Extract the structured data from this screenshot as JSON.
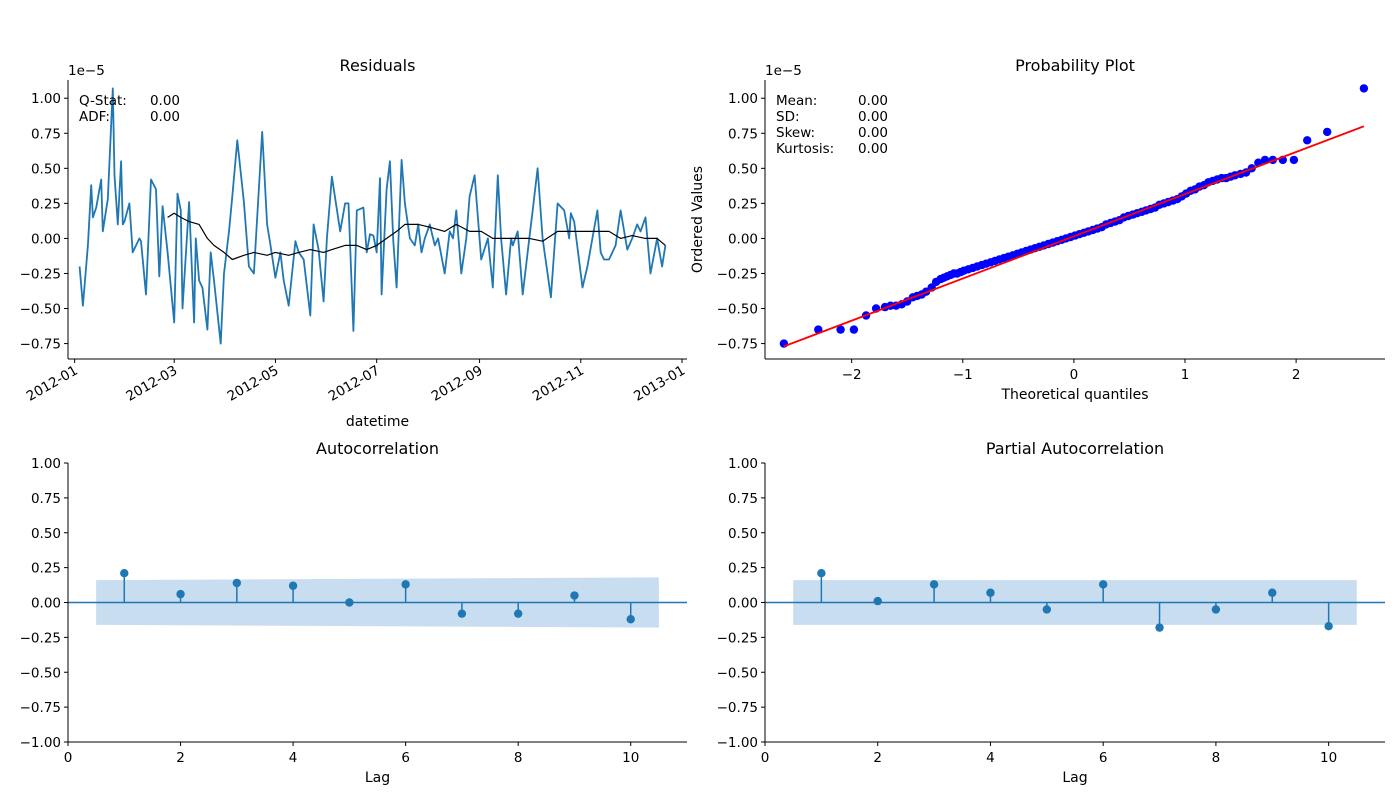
{
  "chart_data": [
    {
      "type": "line",
      "title": "Residuals",
      "xlabel": "datetime",
      "ylabel": "",
      "scale_label": "1e−5",
      "x_ticks": [
        "2012-01",
        "2012-03",
        "2012-05",
        "2012-07",
        "2012-09",
        "2012-11",
        "2013-01"
      ],
      "xlim": [
        "2011-12-28",
        "2013-01-04"
      ],
      "y_ticks": [
        "−0.75",
        "−0.50",
        "−0.25",
        "0.00",
        "0.25",
        "0.50",
        "0.75",
        "1.00"
      ],
      "ylim": [
        -0.86,
        1.13
      ],
      "annotations": [
        {
          "label": "Q-Stat:",
          "value": "0.00"
        },
        {
          "label": "ADF:",
          "value": "0.00"
        }
      ],
      "series": [
        {
          "color": "#1f77b4",
          "x": [
            "2012-01-04",
            "2012-01-06",
            "2012-01-09",
            "2012-01-11",
            "2012-01-12",
            "2012-01-14",
            "2012-01-17",
            "2012-01-18",
            "2012-01-21",
            "2012-01-24",
            "2012-01-25",
            "2012-01-27",
            "2012-01-29",
            "2012-01-30",
            "2012-01-31",
            "2012-02-03",
            "2012-02-05",
            "2012-02-09",
            "2012-02-10",
            "2012-02-13",
            "2012-02-16",
            "2012-02-19",
            "2012-02-21",
            "2012-02-23",
            "2012-02-26",
            "2012-03-01",
            "2012-03-03",
            "2012-03-05",
            "2012-03-06",
            "2012-03-10",
            "2012-03-13",
            "2012-03-14",
            "2012-03-16",
            "2012-03-18",
            "2012-03-21",
            "2012-03-23",
            "2012-03-25",
            "2012-03-29",
            "2012-03-31",
            "2012-04-03",
            "2012-04-05",
            "2012-04-08",
            "2012-04-12",
            "2012-04-15",
            "2012-04-18",
            "2012-04-23",
            "2012-04-26",
            "2012-04-28",
            "2012-05-01",
            "2012-05-04",
            "2012-05-06",
            "2012-05-09",
            "2012-05-13",
            "2012-05-15",
            "2012-05-18",
            "2012-05-22",
            "2012-05-24",
            "2012-05-27",
            "2012-05-30",
            "2012-06-01",
            "2012-06-04",
            "2012-06-09",
            "2012-06-12",
            "2012-06-14",
            "2012-06-17",
            "2012-06-19",
            "2012-06-23",
            "2012-06-25",
            "2012-06-27",
            "2012-06-29",
            "2012-07-01",
            "2012-07-03",
            "2012-07-04",
            "2012-07-07",
            "2012-07-09",
            "2012-07-11",
            "2012-07-13",
            "2012-07-16",
            "2012-07-18",
            "2012-07-21",
            "2012-07-24",
            "2012-07-26",
            "2012-07-28",
            "2012-07-30",
            "2012-08-02",
            "2012-08-05",
            "2012-08-07",
            "2012-08-11",
            "2012-08-14",
            "2012-08-16",
            "2012-08-18",
            "2012-08-21",
            "2012-08-24",
            "2012-08-26",
            "2012-08-29",
            "2012-09-02",
            "2012-09-06",
            "2012-09-09",
            "2012-09-12",
            "2012-09-14",
            "2012-09-17",
            "2012-09-20",
            "2012-09-21",
            "2012-09-24",
            "2012-09-27",
            "2012-10-01",
            "2012-10-03",
            "2012-10-06",
            "2012-10-09",
            "2012-10-14",
            "2012-10-18",
            "2012-10-22",
            "2012-10-25",
            "2012-10-26",
            "2012-10-28",
            "2012-11-02",
            "2012-11-05",
            "2012-11-08",
            "2012-11-11",
            "2012-11-13",
            "2012-11-15",
            "2012-11-18",
            "2012-11-22",
            "2012-11-25",
            "2012-11-29",
            "2012-12-02",
            "2012-12-05",
            "2012-12-07",
            "2012-12-10",
            "2012-12-13",
            "2012-12-17",
            "2012-12-20",
            "2012-12-22"
          ],
          "y": [
            -0.2,
            -0.48,
            -0.05,
            0.38,
            0.15,
            0.22,
            0.42,
            0.05,
            0.28,
            1.07,
            0.45,
            0.1,
            0.55,
            0.1,
            0.12,
            0.25,
            -0.1,
            0.0,
            -0.02,
            -0.4,
            0.42,
            0.35,
            -0.27,
            0.23,
            -0.1,
            -0.6,
            0.32,
            0.2,
            -0.5,
            0.26,
            -0.6,
            0.0,
            -0.3,
            -0.35,
            -0.65,
            -0.1,
            -0.3,
            -0.75,
            -0.25,
            0.05,
            0.3,
            0.7,
            0.26,
            -0.2,
            -0.25,
            0.76,
            0.1,
            -0.05,
            -0.28,
            -0.1,
            -0.3,
            -0.48,
            -0.02,
            -0.1,
            -0.15,
            -0.55,
            0.1,
            -0.08,
            -0.45,
            0.0,
            0.44,
            0.05,
            0.25,
            0.25,
            -0.66,
            0.2,
            0.22,
            -0.1,
            0.03,
            0.02,
            -0.1,
            0.43,
            -0.4,
            0.35,
            0.55,
            -0.02,
            -0.35,
            0.56,
            0.25,
            0.0,
            -0.05,
            0.1,
            -0.1,
            0.0,
            0.1,
            -0.05,
            0.0,
            -0.25,
            0.05,
            0.0,
            0.2,
            -0.25,
            0.0,
            0.3,
            0.45,
            -0.15,
            0.0,
            -0.35,
            0.45,
            0.0,
            -0.4,
            0.0,
            -0.05,
            0.05,
            -0.4,
            0.0,
            0.2,
            0.5,
            0.0,
            -0.42,
            0.25,
            0.2,
            0.0,
            0.18,
            0.12,
            -0.35,
            -0.2,
            0.0,
            0.2,
            -0.1,
            -0.15,
            -0.15,
            -0.05,
            0.2,
            -0.08,
            0.0,
            0.1,
            0.05,
            0.15,
            -0.25,
            0.0,
            -0.2,
            -0.05
          ]
        },
        {
          "color": "#000000",
          "x": [
            "2012-02-26",
            "2012-03-01",
            "2012-03-05",
            "2012-03-10",
            "2012-03-16",
            "2012-03-21",
            "2012-03-25",
            "2012-03-31",
            "2012-04-05",
            "2012-04-12",
            "2012-04-18",
            "2012-04-26",
            "2012-05-01",
            "2012-05-09",
            "2012-05-15",
            "2012-05-22",
            "2012-05-30",
            "2012-06-04",
            "2012-06-12",
            "2012-06-19",
            "2012-06-25",
            "2012-07-01",
            "2012-07-07",
            "2012-07-13",
            "2012-07-18",
            "2012-07-26",
            "2012-08-02",
            "2012-08-11",
            "2012-08-18",
            "2012-08-26",
            "2012-09-02",
            "2012-09-09",
            "2012-09-17",
            "2012-09-24",
            "2012-10-01",
            "2012-10-09",
            "2012-10-18",
            "2012-10-26",
            "2012-11-02",
            "2012-11-11",
            "2012-11-18",
            "2012-11-25",
            "2012-12-02",
            "2012-12-10",
            "2012-12-17",
            "2012-12-22"
          ],
          "y": [
            0.15,
            0.18,
            0.15,
            0.12,
            0.1,
            0.0,
            -0.05,
            -0.1,
            -0.15,
            -0.12,
            -0.1,
            -0.12,
            -0.1,
            -0.12,
            -0.1,
            -0.08,
            -0.1,
            -0.08,
            -0.05,
            -0.05,
            -0.08,
            -0.05,
            0.0,
            0.05,
            0.1,
            0.1,
            0.08,
            0.05,
            0.1,
            0.05,
            0.05,
            0.0,
            0.0,
            0.0,
            0.0,
            -0.02,
            0.05,
            0.05,
            0.05,
            0.05,
            0.05,
            0.0,
            0.02,
            0.0,
            0.0,
            -0.05
          ]
        }
      ]
    },
    {
      "type": "scatter",
      "title": "Probability Plot",
      "xlabel": "Theoretical quantiles",
      "ylabel": "Ordered Values",
      "scale_label": "1e−5",
      "x_ticks": [
        "−2",
        "−1",
        "0",
        "1",
        "2"
      ],
      "xlim": [
        -2.78,
        2.8
      ],
      "y_ticks": [
        "−0.75",
        "−0.50",
        "−0.25",
        "0.00",
        "0.25",
        "0.50",
        "0.75",
        "1.00"
      ],
      "ylim": [
        -0.86,
        1.13
      ],
      "annotations": [
        {
          "label": "Mean:",
          "value": "0.00"
        },
        {
          "label": "SD:",
          "value": "0.00"
        },
        {
          "label": "Skew:",
          "value": "0.00"
        },
        {
          "label": "Kurtosis:",
          "value": "0.00"
        }
      ],
      "points": {
        "color": "#0000ff",
        "x": [
          -2.61,
          -2.3,
          -2.1,
          -1.98,
          -1.87,
          -1.78,
          -1.7,
          -1.65,
          -1.6,
          -1.55,
          -1.5,
          -1.45,
          -1.41,
          -1.37,
          -1.33,
          -1.28,
          -1.24,
          -1.2,
          -1.17,
          -1.14,
          -1.11,
          -1.08,
          -1.05,
          -1.02,
          -0.99,
          -0.95,
          -0.91,
          -0.87,
          -0.83,
          -0.79,
          -0.75,
          -0.71,
          -0.67,
          -0.63,
          -0.59,
          -0.55,
          -0.51,
          -0.47,
          -0.43,
          -0.39,
          -0.35,
          -0.31,
          -0.27,
          -0.23,
          -0.19,
          -0.15,
          -0.11,
          -0.07,
          -0.03,
          0.01,
          0.05,
          0.09,
          0.13,
          0.17,
          0.21,
          0.25,
          0.29,
          0.33,
          0.37,
          0.41,
          0.45,
          0.49,
          0.53,
          0.57,
          0.61,
          0.65,
          0.69,
          0.73,
          0.77,
          0.81,
          0.85,
          0.89,
          0.93,
          0.97,
          1.01,
          1.05,
          1.09,
          1.13,
          1.17,
          1.21,
          1.25,
          1.29,
          1.33,
          1.37,
          1.41,
          1.45,
          1.5,
          1.55,
          1.6,
          1.66,
          1.72,
          1.79,
          1.88,
          1.98,
          2.1,
          2.28,
          2.61
        ],
        "y": [
          -0.75,
          -0.65,
          -0.65,
          -0.65,
          -0.55,
          -0.5,
          -0.49,
          -0.48,
          -0.48,
          -0.47,
          -0.45,
          -0.42,
          -0.41,
          -0.4,
          -0.38,
          -0.35,
          -0.31,
          -0.29,
          -0.28,
          -0.27,
          -0.26,
          -0.25,
          -0.25,
          -0.24,
          -0.23,
          -0.22,
          -0.21,
          -0.2,
          -0.19,
          -0.18,
          -0.17,
          -0.16,
          -0.15,
          -0.14,
          -0.13,
          -0.12,
          -0.11,
          -0.1,
          -0.09,
          -0.08,
          -0.07,
          -0.06,
          -0.05,
          -0.04,
          -0.03,
          -0.02,
          -0.01,
          0.0,
          0.01,
          0.02,
          0.03,
          0.04,
          0.05,
          0.06,
          0.07,
          0.08,
          0.1,
          0.11,
          0.12,
          0.13,
          0.15,
          0.16,
          0.17,
          0.18,
          0.19,
          0.2,
          0.21,
          0.22,
          0.24,
          0.25,
          0.26,
          0.27,
          0.28,
          0.3,
          0.32,
          0.34,
          0.35,
          0.37,
          0.38,
          0.4,
          0.41,
          0.42,
          0.43,
          0.43,
          0.44,
          0.45,
          0.46,
          0.47,
          0.5,
          0.54,
          0.56,
          0.56,
          0.56,
          0.56,
          0.7,
          0.76,
          1.07
        ]
      },
      "fit_line": {
        "color": "#ff0000",
        "x": [
          -2.61,
          2.61
        ],
        "y": [
          -0.77,
          0.8
        ]
      }
    },
    {
      "type": "stem",
      "title": "Autocorrelation",
      "xlabel": "Lag",
      "ylabel": "",
      "x_ticks": [
        "0",
        "2",
        "4",
        "6",
        "8",
        "10"
      ],
      "xlim": [
        0,
        11
      ],
      "y_ticks": [
        "−1.00",
        "−0.75",
        "−0.50",
        "−0.25",
        "0.00",
        "0.25",
        "0.50",
        "0.75",
        "1.00"
      ],
      "ylim": [
        -1,
        1
      ],
      "color": "#1f77b4",
      "band_color": "#c6dbef",
      "lags": [
        1,
        2,
        3,
        4,
        5,
        6,
        7,
        8,
        9,
        10
      ],
      "values": [
        0.21,
        0.06,
        0.14,
        0.12,
        0.0,
        0.13,
        -0.08,
        -0.08,
        0.05,
        -0.12
      ],
      "confidence_band": {
        "x": [
          0.5,
          10.5
        ],
        "upper": [
          0.16,
          0.18
        ],
        "lower": [
          -0.16,
          -0.18
        ]
      }
    },
    {
      "type": "stem",
      "title": "Partial Autocorrelation",
      "xlabel": "Lag",
      "ylabel": "",
      "x_ticks": [
        "0",
        "2",
        "4",
        "6",
        "8",
        "10"
      ],
      "xlim": [
        0,
        11
      ],
      "y_ticks": [
        "−1.00",
        "−0.75",
        "−0.50",
        "−0.25",
        "0.00",
        "0.25",
        "0.50",
        "0.75",
        "1.00"
      ],
      "ylim": [
        -1,
        1
      ],
      "color": "#1f77b4",
      "band_color": "#c6dbef",
      "lags": [
        1,
        2,
        3,
        4,
        5,
        6,
        7,
        8,
        9,
        10
      ],
      "values": [
        0.21,
        0.01,
        0.13,
        0.07,
        -0.05,
        0.13,
        -0.18,
        -0.05,
        0.07,
        -0.17
      ],
      "confidence_band": {
        "x": [
          0.5,
          10.5
        ],
        "upper": [
          0.16,
          0.16
        ],
        "lower": [
          -0.16,
          -0.16
        ]
      }
    }
  ]
}
